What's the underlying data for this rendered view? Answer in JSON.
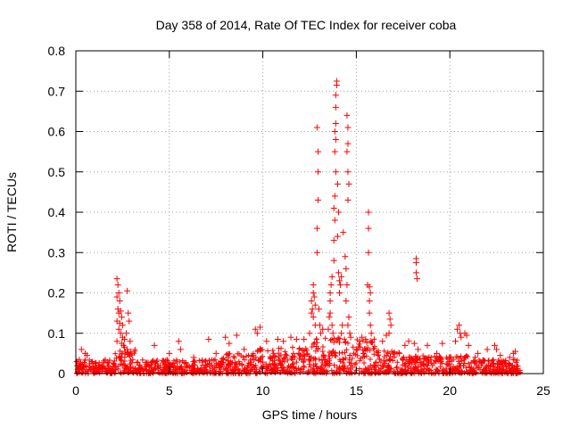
{
  "chart_data": {
    "type": "scatter",
    "title": "Day 358 of 2014, Rate Of TEC Index for receiver coba",
    "xlabel": "GPS time / hours",
    "ylabel": "ROTI / TECUs",
    "xlim": [
      0,
      25
    ],
    "ylim": [
      0,
      0.8
    ],
    "xticks": [
      0,
      5,
      10,
      15,
      20,
      25
    ],
    "xtick_labels": [
      "0",
      "5",
      "10",
      "15",
      "20",
      "25"
    ],
    "yticks": [
      0,
      0.1,
      0.2,
      0.3,
      0.4,
      0.5,
      0.6,
      0.7,
      0.8
    ],
    "ytick_labels": [
      "0",
      "0.1",
      "0.2",
      "0.3",
      "0.4",
      "0.5",
      "0.6",
      "0.7",
      "0.8"
    ],
    "grid": true,
    "marker": "+",
    "marker_color": "#ff0000",
    "baseline": {
      "x_range": [
        0,
        23.8
      ],
      "segments": [
        {
          "x": [
            0,
            2
          ],
          "max": 0.035
        },
        {
          "x": [
            2,
            3.2
          ],
          "max": 0.06
        },
        {
          "x": [
            3.2,
            7.8
          ],
          "max": 0.035
        },
        {
          "x": [
            7.8,
            9.5
          ],
          "max": 0.05
        },
        {
          "x": [
            9.5,
            12.3
          ],
          "max": 0.065
        },
        {
          "x": [
            12.3,
            16
          ],
          "max": 0.09
        },
        {
          "x": [
            16,
            17.5
          ],
          "max": 0.06
        },
        {
          "x": [
            17.5,
            21.5
          ],
          "max": 0.045
        },
        {
          "x": [
            21.5,
            23.8
          ],
          "max": 0.035
        }
      ]
    },
    "points": [
      [
        2.2,
        0.235
      ],
      [
        2.25,
        0.22
      ],
      [
        2.3,
        0.2
      ],
      [
        2.2,
        0.19
      ],
      [
        2.35,
        0.18
      ],
      [
        2.25,
        0.16
      ],
      [
        2.4,
        0.155
      ],
      [
        2.3,
        0.15
      ],
      [
        2.45,
        0.14
      ],
      [
        2.2,
        0.13
      ],
      [
        2.35,
        0.125
      ],
      [
        2.5,
        0.12
      ],
      [
        2.3,
        0.11
      ],
      [
        2.4,
        0.1
      ],
      [
        2.5,
        0.09
      ],
      [
        2.6,
        0.085
      ],
      [
        2.2,
        0.08
      ],
      [
        2.45,
        0.075
      ],
      [
        2.55,
        0.07
      ],
      [
        2.6,
        0.065
      ],
      [
        2.75,
        0.205
      ],
      [
        2.8,
        0.15
      ],
      [
        2.85,
        0.13
      ],
      [
        2.7,
        0.1
      ],
      [
        2.9,
        0.08
      ],
      [
        2.75,
        0.06
      ],
      [
        2.95,
        0.055
      ],
      [
        0.3,
        0.06
      ],
      [
        0.5,
        0.05
      ],
      [
        0.6,
        0.045
      ],
      [
        4.2,
        0.07
      ],
      [
        5.0,
        0.05
      ],
      [
        5.5,
        0.08
      ],
      [
        5.6,
        0.06
      ],
      [
        6.3,
        0.04
      ],
      [
        7.1,
        0.085
      ],
      [
        7.5,
        0.05
      ],
      [
        8.0,
        0.09
      ],
      [
        8.2,
        0.075
      ],
      [
        8.6,
        0.095
      ],
      [
        9.0,
        0.06
      ],
      [
        9.6,
        0.11
      ],
      [
        9.7,
        0.1
      ],
      [
        9.85,
        0.115
      ],
      [
        10.2,
        0.08
      ],
      [
        10.8,
        0.085
      ],
      [
        11.1,
        0.08
      ],
      [
        11.5,
        0.09
      ],
      [
        11.8,
        0.085
      ],
      [
        12.2,
        0.085
      ],
      [
        12.5,
        0.1
      ],
      [
        12.6,
        0.15
      ],
      [
        12.6,
        0.18
      ],
      [
        12.7,
        0.22
      ],
      [
        12.7,
        0.2
      ],
      [
        12.75,
        0.19
      ],
      [
        12.65,
        0.16
      ],
      [
        12.8,
        0.17
      ],
      [
        12.7,
        0.14
      ],
      [
        12.8,
        0.12
      ],
      [
        12.9,
        0.3
      ],
      [
        12.9,
        0.36
      ],
      [
        12.95,
        0.43
      ],
      [
        12.95,
        0.5
      ],
      [
        12.95,
        0.55
      ],
      [
        12.9,
        0.61
      ],
      [
        13.0,
        0.16
      ],
      [
        13.05,
        0.12
      ],
      [
        13.1,
        0.1
      ],
      [
        13.2,
        0.11
      ],
      [
        13.5,
        0.11
      ],
      [
        13.55,
        0.14
      ],
      [
        13.6,
        0.18
      ],
      [
        13.6,
        0.2
      ],
      [
        13.65,
        0.22
      ],
      [
        13.7,
        0.24
      ],
      [
        13.6,
        0.15
      ],
      [
        13.7,
        0.12
      ],
      [
        13.75,
        0.1
      ],
      [
        13.8,
        0.28
      ],
      [
        13.8,
        0.33
      ],
      [
        13.85,
        0.38
      ],
      [
        13.8,
        0.41
      ],
      [
        13.85,
        0.44
      ],
      [
        13.9,
        0.5
      ],
      [
        13.85,
        0.55
      ],
      [
        13.9,
        0.58
      ],
      [
        13.85,
        0.6
      ],
      [
        13.9,
        0.62
      ],
      [
        13.9,
        0.66
      ],
      [
        13.9,
        0.69
      ],
      [
        13.95,
        0.715
      ],
      [
        13.95,
        0.725
      ],
      [
        14.0,
        0.47
      ],
      [
        14.0,
        0.34
      ],
      [
        14.05,
        0.4
      ],
      [
        14.05,
        0.25
      ],
      [
        14.1,
        0.23
      ],
      [
        14.1,
        0.2
      ],
      [
        14.15,
        0.22
      ],
      [
        14.2,
        0.24
      ],
      [
        14.25,
        0.12
      ],
      [
        14.2,
        0.1
      ],
      [
        14.3,
        0.35
      ],
      [
        14.4,
        0.29
      ],
      [
        14.45,
        0.26
      ],
      [
        14.5,
        0.64
      ],
      [
        14.55,
        0.61
      ],
      [
        14.55,
        0.57
      ],
      [
        14.5,
        0.55
      ],
      [
        14.55,
        0.5
      ],
      [
        14.6,
        0.47
      ],
      [
        14.55,
        0.43
      ],
      [
        14.5,
        0.22
      ],
      [
        14.45,
        0.18
      ],
      [
        14.6,
        0.14
      ],
      [
        14.55,
        0.12
      ],
      [
        14.65,
        0.1
      ],
      [
        14.7,
        0.09
      ],
      [
        15.0,
        0.06
      ],
      [
        15.2,
        0.08
      ],
      [
        15.3,
        0.09
      ],
      [
        15.5,
        0.085
      ],
      [
        15.65,
        0.4
      ],
      [
        15.65,
        0.36
      ],
      [
        15.65,
        0.3
      ],
      [
        15.6,
        0.22
      ],
      [
        15.7,
        0.215
      ],
      [
        15.75,
        0.2
      ],
      [
        15.7,
        0.18
      ],
      [
        15.7,
        0.15
      ],
      [
        15.75,
        0.12
      ],
      [
        15.8,
        0.1
      ],
      [
        15.75,
        0.08
      ],
      [
        16.4,
        0.08
      ],
      [
        16.6,
        0.095
      ],
      [
        16.75,
        0.15
      ],
      [
        16.8,
        0.135
      ],
      [
        16.85,
        0.12
      ],
      [
        16.75,
        0.1
      ],
      [
        17.3,
        0.05
      ],
      [
        17.6,
        0.07
      ],
      [
        17.8,
        0.08
      ],
      [
        18.1,
        0.075
      ],
      [
        18.2,
        0.285
      ],
      [
        18.2,
        0.275
      ],
      [
        18.2,
        0.25
      ],
      [
        18.25,
        0.235
      ],
      [
        18.3,
        0.06
      ],
      [
        18.8,
        0.07
      ],
      [
        19.3,
        0.05
      ],
      [
        19.6,
        0.075
      ],
      [
        20.0,
        0.04
      ],
      [
        20.3,
        0.08
      ],
      [
        20.4,
        0.11
      ],
      [
        20.5,
        0.12
      ],
      [
        20.55,
        0.1
      ],
      [
        20.6,
        0.09
      ],
      [
        20.8,
        0.1
      ],
      [
        20.9,
        0.095
      ],
      [
        21.0,
        0.07
      ],
      [
        21.5,
        0.05
      ],
      [
        22.0,
        0.06
      ],
      [
        22.4,
        0.07
      ],
      [
        22.5,
        0.06
      ],
      [
        22.7,
        0.045
      ],
      [
        23.2,
        0.04
      ],
      [
        23.4,
        0.05
      ],
      [
        23.5,
        0.055
      ]
    ]
  }
}
